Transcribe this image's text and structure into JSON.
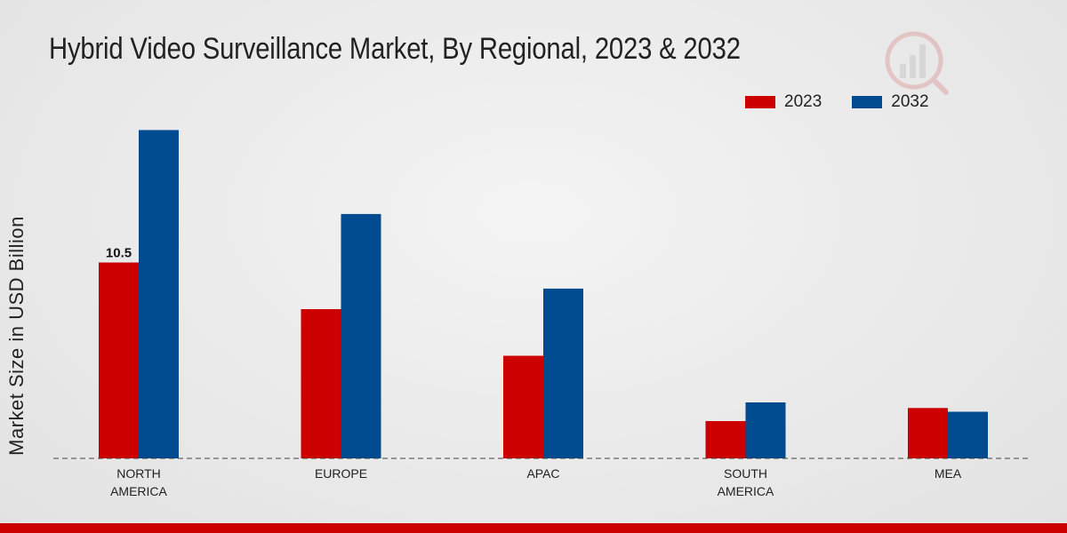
{
  "chart_data": {
    "type": "bar",
    "title": "Hybrid Video Surveillance Market, By Regional, 2023 & 2032",
    "xlabel": "",
    "ylabel": "Market Size in USD Billion",
    "categories": [
      "NORTH AMERICA",
      "EUROPE",
      "APAC",
      "SOUTH AMERICA",
      "MEA"
    ],
    "category_lines": [
      [
        "NORTH",
        "AMERICA"
      ],
      [
        "EUROPE"
      ],
      [
        "APAC"
      ],
      [
        "SOUTH",
        "AMERICA"
      ],
      [
        "MEA"
      ]
    ],
    "series": [
      {
        "name": "2023",
        "color": "#cc0000",
        "values": [
          10.5,
          8.0,
          5.5,
          2.0,
          2.7
        ]
      },
      {
        "name": "2032",
        "color": "#004a8f",
        "values": [
          17.6,
          13.1,
          9.1,
          3.0,
          2.5
        ]
      }
    ],
    "data_labels": [
      {
        "series": 0,
        "index": 0,
        "text": "10.5"
      }
    ],
    "ylim": [
      0,
      20
    ],
    "grid": false,
    "legend_position": "top-right"
  },
  "colors": {
    "bottom_bar": "#cc0000",
    "baseline": "#444444"
  },
  "watermark_icon": "market-research-logo-icon"
}
